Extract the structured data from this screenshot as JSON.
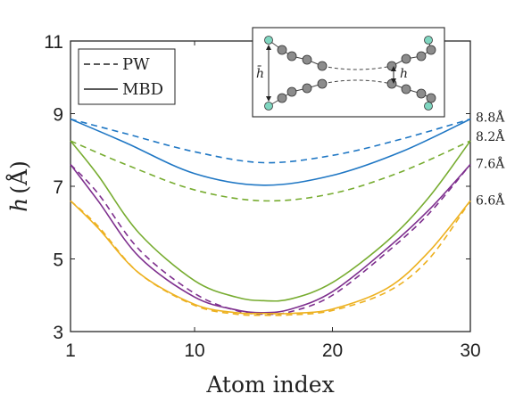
{
  "chart_data": {
    "type": "line",
    "xlabel": "Atom index",
    "ylabel_symbol": "h",
    "ylabel_unit": "(Å)",
    "xlim": [
      1,
      30
    ],
    "ylim": [
      3,
      11
    ],
    "xticks": [
      1,
      10,
      20,
      30
    ],
    "yticks": [
      3,
      5,
      7,
      9,
      11
    ],
    "grid": false,
    "legend": {
      "placement": "top-left",
      "entries": [
        {
          "label": "PW",
          "style": "dashed"
        },
        {
          "label": "MBD",
          "style": "solid"
        }
      ]
    },
    "inset": {
      "placement": "top-right",
      "labels": {
        "h_bar": "h̄",
        "h": "h"
      }
    },
    "colors": {
      "s88": "#1f77c4",
      "s82": "#77ac30",
      "s76": "#7e2f8e",
      "s66": "#edb120"
    },
    "series": [
      {
        "label": "8.8Å",
        "color_key": "s88",
        "pw": [
          [
            1,
            8.85
          ],
          [
            5,
            8.45
          ],
          [
            10,
            7.95
          ],
          [
            15,
            7.65
          ],
          [
            20,
            7.85
          ],
          [
            25,
            8.3
          ],
          [
            30,
            8.85
          ]
        ],
        "mbd": [
          [
            1,
            8.85
          ],
          [
            5,
            8.2
          ],
          [
            10,
            7.35
          ],
          [
            15,
            7.03
          ],
          [
            20,
            7.3
          ],
          [
            25,
            7.95
          ],
          [
            30,
            8.85
          ]
        ]
      },
      {
        "label": "8.2Å",
        "color_key": "s82",
        "pw": [
          [
            1,
            8.25
          ],
          [
            5,
            7.6
          ],
          [
            10,
            6.9
          ],
          [
            15,
            6.6
          ],
          [
            20,
            6.8
          ],
          [
            25,
            7.4
          ],
          [
            30,
            8.25
          ]
        ],
        "mbd": [
          [
            1,
            8.25
          ],
          [
            3,
            7.3
          ],
          [
            6,
            5.7
          ],
          [
            10,
            4.4
          ],
          [
            13,
            3.95
          ],
          [
            15,
            3.85
          ],
          [
            17,
            3.9
          ],
          [
            20,
            4.35
          ],
          [
            24,
            5.5
          ],
          [
            27,
            6.7
          ],
          [
            30,
            8.25
          ]
        ]
      },
      {
        "label": "7.6Å",
        "color_key": "s76",
        "pw": [
          [
            1,
            7.6
          ],
          [
            3,
            6.8
          ],
          [
            6,
            5.25
          ],
          [
            10,
            4.05
          ],
          [
            13,
            3.58
          ],
          [
            15,
            3.48
          ],
          [
            17,
            3.55
          ],
          [
            20,
            4.0
          ],
          [
            24,
            5.2
          ],
          [
            27,
            6.25
          ],
          [
            30,
            7.6
          ]
        ],
        "mbd": [
          [
            1,
            7.6
          ],
          [
            3,
            6.6
          ],
          [
            6,
            5.05
          ],
          [
            10,
            3.95
          ],
          [
            13,
            3.6
          ],
          [
            15,
            3.52
          ],
          [
            17,
            3.62
          ],
          [
            20,
            4.1
          ],
          [
            24,
            5.3
          ],
          [
            27,
            6.35
          ],
          [
            30,
            7.6
          ]
        ]
      },
      {
        "label": "6.6Å",
        "color_key": "s66",
        "pw": [
          [
            1,
            6.6
          ],
          [
            3,
            5.9
          ],
          [
            6,
            4.6
          ],
          [
            10,
            3.72
          ],
          [
            13,
            3.48
          ],
          [
            15,
            3.45
          ],
          [
            17,
            3.46
          ],
          [
            20,
            3.58
          ],
          [
            24,
            4.1
          ],
          [
            27,
            5.0
          ],
          [
            30,
            6.6
          ]
        ],
        "mbd": [
          [
            1,
            6.6
          ],
          [
            3,
            5.85
          ],
          [
            6,
            4.6
          ],
          [
            10,
            3.75
          ],
          [
            13,
            3.52
          ],
          [
            15,
            3.5
          ],
          [
            17,
            3.5
          ],
          [
            20,
            3.62
          ],
          [
            24,
            4.2
          ],
          [
            27,
            5.2
          ],
          [
            30,
            6.6
          ]
        ]
      }
    ]
  }
}
